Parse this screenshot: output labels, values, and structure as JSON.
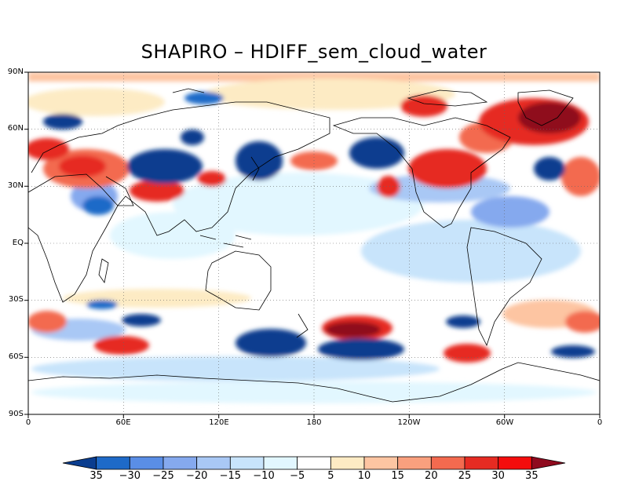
{
  "title": "SHAPIRO – HDIFF_sem_cloud_water",
  "lat_ticks": [
    "90N",
    "60N",
    "30N",
    "EQ",
    "30S",
    "60S",
    "90S"
  ],
  "lon_ticks": [
    "0",
    "60E",
    "120E",
    "180",
    "120W",
    "60W",
    "0"
  ],
  "colorbar": {
    "labels": [
      "35",
      "−30",
      "−25",
      "−20",
      "−15",
      "−10",
      "−5",
      "5",
      "10",
      "15",
      "20",
      "25",
      "30",
      "35"
    ],
    "colors": [
      "#0a3d8f",
      "#1e6ac8",
      "#5a8ee6",
      "#85a9ee",
      "#a9c8f5",
      "#c8e4fb",
      "#e2f7ff",
      "#ffffff",
      "#fdebc4",
      "#fdc5a2",
      "#f9a07e",
      "#f36a4f",
      "#e62b22",
      "#f40d0d",
      "#8f0a1e"
    ]
  }
}
